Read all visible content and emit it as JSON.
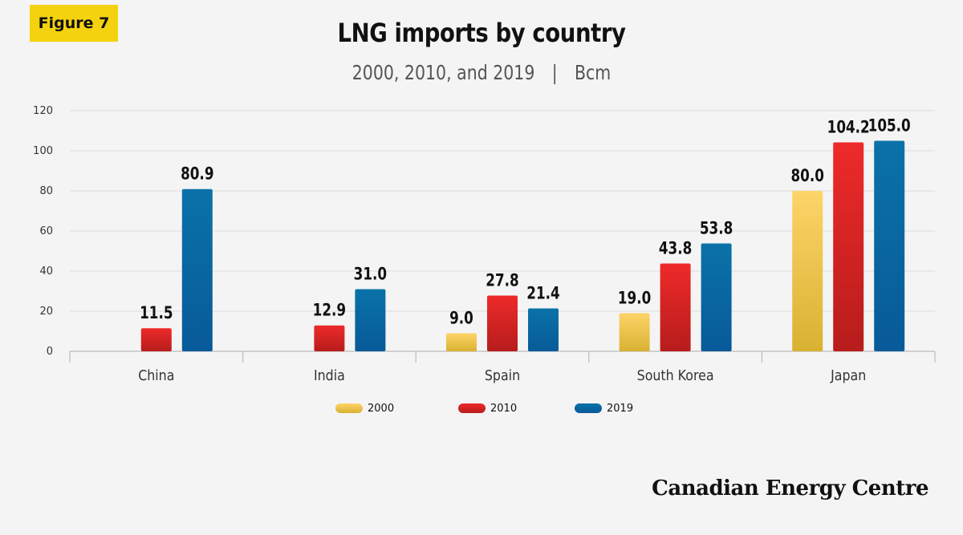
{
  "badge": "Figure 7",
  "footer": {
    "brand": "Canadian Energy Centre"
  },
  "chart_data": {
    "type": "bar",
    "title": "LNG imports by country",
    "subtitle_years": "2000, 2010, and 2019",
    "subtitle_unit": "Bcm",
    "categories": [
      "China",
      "India",
      "Spain",
      "South Korea",
      "Japan"
    ],
    "series": [
      {
        "name": "2000",
        "values": [
          null,
          null,
          9.0,
          19.0,
          80.0
        ],
        "labels": [
          "",
          "",
          "9.0",
          "19.0",
          "80.0"
        ],
        "color_top": "#fdd468",
        "color_bottom": "#d9b132"
      },
      {
        "name": "2010",
        "values": [
          11.5,
          12.9,
          27.8,
          43.8,
          104.2
        ],
        "labels": [
          "11.5",
          "12.9",
          "27.8",
          "43.8",
          "104.2"
        ],
        "color_top": "#ee2a2a",
        "color_bottom": "#b71c1c"
      },
      {
        "name": "2019",
        "values": [
          80.9,
          31.0,
          21.4,
          53.8,
          105.0
        ],
        "labels": [
          "80.9",
          "31.0",
          "21.4",
          "53.8",
          "105.0"
        ],
        "color_top": "#0a72a8",
        "color_bottom": "#085a99"
      }
    ],
    "ylim": [
      0,
      120
    ],
    "yticks": [
      0,
      20,
      40,
      60,
      80,
      100,
      120
    ],
    "grid": true,
    "legend": "bottom-center"
  }
}
